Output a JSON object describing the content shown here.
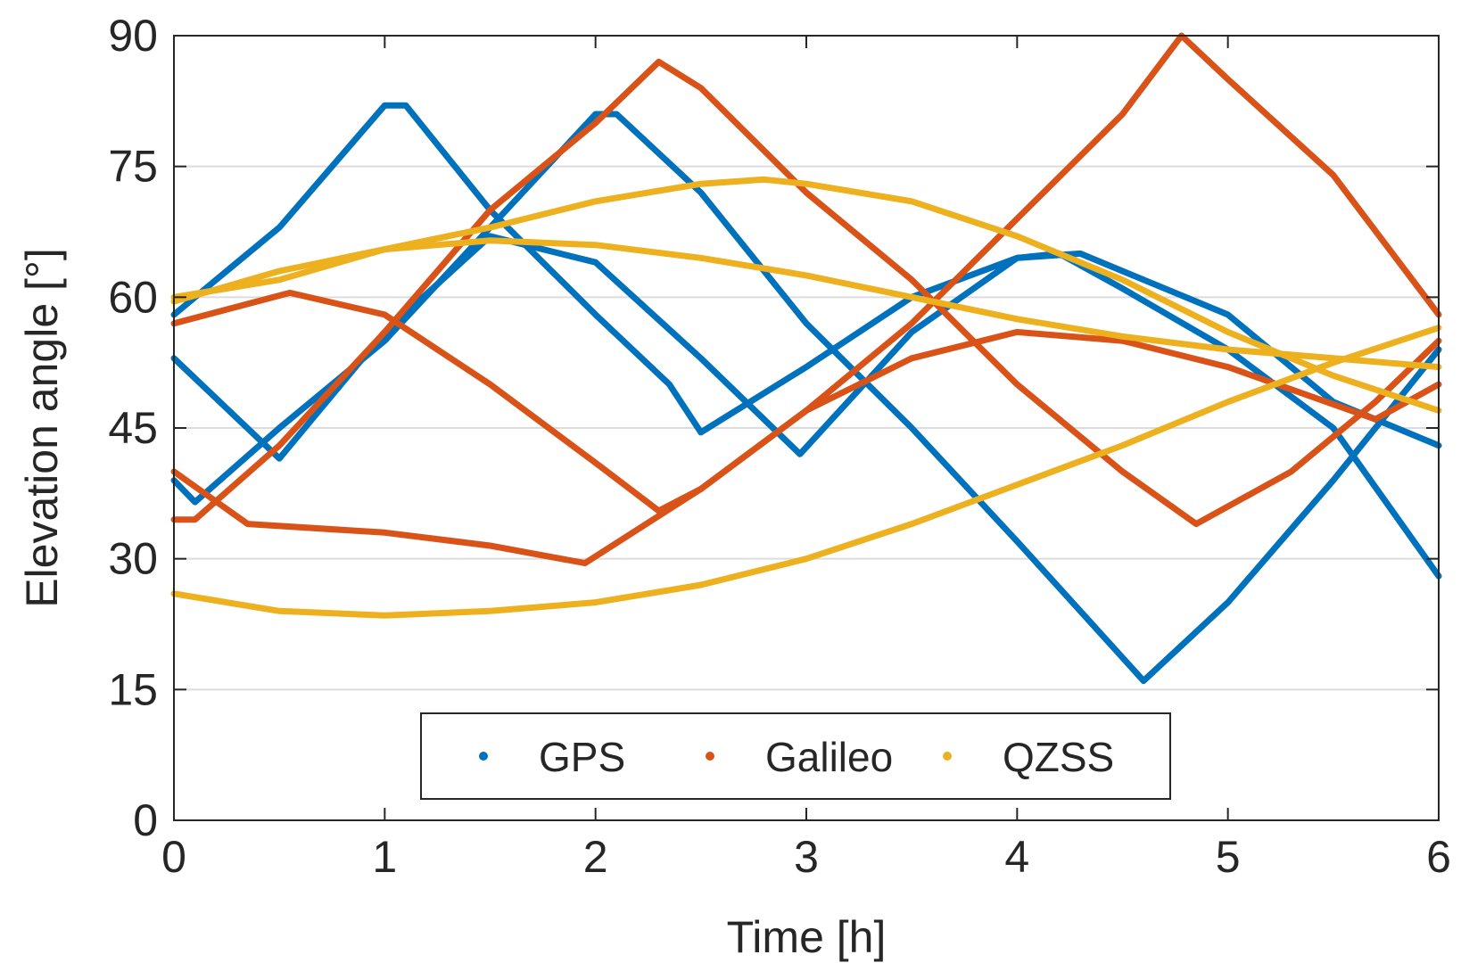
{
  "chart_data": {
    "type": "scatter",
    "title": "",
    "xlabel": "Time [h]",
    "ylabel": "Elevation angle [°]",
    "xlim": [
      0,
      6
    ],
    "ylim": [
      0,
      90
    ],
    "x_ticks": [
      0,
      1,
      2,
      3,
      4,
      5,
      6
    ],
    "y_ticks": [
      0,
      15,
      30,
      45,
      60,
      75,
      90
    ],
    "y_grid": true,
    "x_grid": false,
    "legend_position": "bottom-center",
    "legend_orientation": "horizontal",
    "series": [
      {
        "name": "GPS",
        "color": "#0072BD",
        "tracks": [
          [
            [
              0,
              58
            ],
            [
              0.5,
              68
            ],
            [
              1,
              82
            ],
            [
              1.1,
              82
            ],
            [
              1.5,
              70
            ],
            [
              2,
              58
            ],
            [
              2.35,
              50
            ],
            [
              2.5,
              44.5
            ],
            [
              3,
              52
            ],
            [
              3.5,
              60
            ],
            [
              4,
              64.5
            ],
            [
              4.2,
              65
            ],
            [
              4.5,
              61
            ],
            [
              5,
              54
            ],
            [
              5.5,
              45
            ],
            [
              6,
              28
            ]
          ],
          [
            [
              0,
              53
            ],
            [
              0.5,
              41.5
            ],
            [
              1,
              56
            ],
            [
              1.5,
              67
            ],
            [
              2,
              64
            ],
            [
              2.5,
              53
            ],
            [
              2.97,
              42
            ],
            [
              3.5,
              56
            ],
            [
              4,
              64.5
            ],
            [
              4.3,
              65
            ],
            [
              5,
              58
            ],
            [
              5.5,
              48
            ],
            [
              6,
              43
            ]
          ],
          [
            [
              0,
              39
            ],
            [
              0.1,
              36.5
            ],
            [
              0.5,
              45
            ],
            [
              1,
              55
            ],
            [
              1.5,
              68
            ],
            [
              2,
              81
            ],
            [
              2.1,
              81
            ],
            [
              2.5,
              72
            ],
            [
              3,
              57
            ],
            [
              3.5,
              45
            ],
            [
              4,
              32
            ],
            [
              4.6,
              16
            ],
            [
              5,
              25
            ],
            [
              5.5,
              39
            ],
            [
              6,
              54
            ]
          ]
        ]
      },
      {
        "name": "Galileo",
        "color": "#D95319",
        "tracks": [
          [
            [
              0,
              57
            ],
            [
              0.55,
              60.5
            ],
            [
              1,
              58
            ],
            [
              1.5,
              50
            ],
            [
              2,
              41
            ],
            [
              2.3,
              35.5
            ],
            [
              2.5,
              38
            ],
            [
              3,
              47
            ],
            [
              3.5,
              53
            ],
            [
              4,
              56
            ],
            [
              4.5,
              55
            ],
            [
              5,
              52
            ],
            [
              5.7,
              46
            ],
            [
              6,
              50
            ]
          ],
          [
            [
              0,
              40
            ],
            [
              0.35,
              34
            ],
            [
              1,
              33
            ],
            [
              1.5,
              31.5
            ],
            [
              1.95,
              29.5
            ],
            [
              2.5,
              38
            ],
            [
              3,
              47
            ],
            [
              3.5,
              57
            ],
            [
              4,
              69
            ],
            [
              4.5,
              81
            ],
            [
              4.78,
              90
            ],
            [
              5,
              85
            ],
            [
              5.5,
              74
            ],
            [
              6,
              58
            ]
          ],
          [
            [
              0,
              34.5
            ],
            [
              0.1,
              34.5
            ],
            [
              0.5,
              43
            ],
            [
              1,
              56
            ],
            [
              1.5,
              70
            ],
            [
              2,
              80
            ],
            [
              2.3,
              87
            ],
            [
              2.5,
              84
            ],
            [
              3,
              72
            ],
            [
              3.5,
              62
            ],
            [
              4,
              50
            ],
            [
              4.5,
              40
            ],
            [
              4.85,
              34
            ],
            [
              5.3,
              40
            ],
            [
              5.7,
              48
            ],
            [
              6,
              55
            ]
          ]
        ]
      },
      {
        "name": "QZSS",
        "color": "#EDB120",
        "tracks": [
          [
            [
              0,
              60
            ],
            [
              0.5,
              62
            ],
            [
              1,
              65.5
            ],
            [
              1.5,
              66.5
            ],
            [
              2,
              66
            ],
            [
              2.5,
              64.5
            ],
            [
              3,
              62.5
            ],
            [
              3.5,
              60
            ],
            [
              4,
              57.5
            ],
            [
              4.5,
              55.5
            ],
            [
              5,
              54
            ],
            [
              5.5,
              53
            ],
            [
              6,
              52
            ]
          ],
          [
            [
              0,
              59.5
            ],
            [
              0.5,
              63
            ],
            [
              1,
              65.5
            ],
            [
              1.5,
              68
            ],
            [
              2,
              71
            ],
            [
              2.5,
              73
            ],
            [
              2.8,
              73.5
            ],
            [
              3,
              73
            ],
            [
              3.5,
              71
            ],
            [
              4,
              67
            ],
            [
              4.5,
              62
            ],
            [
              5,
              56
            ],
            [
              5.5,
              51
            ],
            [
              6,
              47
            ]
          ],
          [
            [
              0,
              26
            ],
            [
              0.5,
              24
            ],
            [
              1,
              23.5
            ],
            [
              1.5,
              24
            ],
            [
              2,
              25
            ],
            [
              2.5,
              27
            ],
            [
              3,
              30
            ],
            [
              3.5,
              34
            ],
            [
              4,
              38.5
            ],
            [
              4.5,
              43
            ],
            [
              5,
              48
            ],
            [
              5.5,
              52.5
            ],
            [
              6,
              56.5
            ]
          ]
        ]
      }
    ]
  }
}
